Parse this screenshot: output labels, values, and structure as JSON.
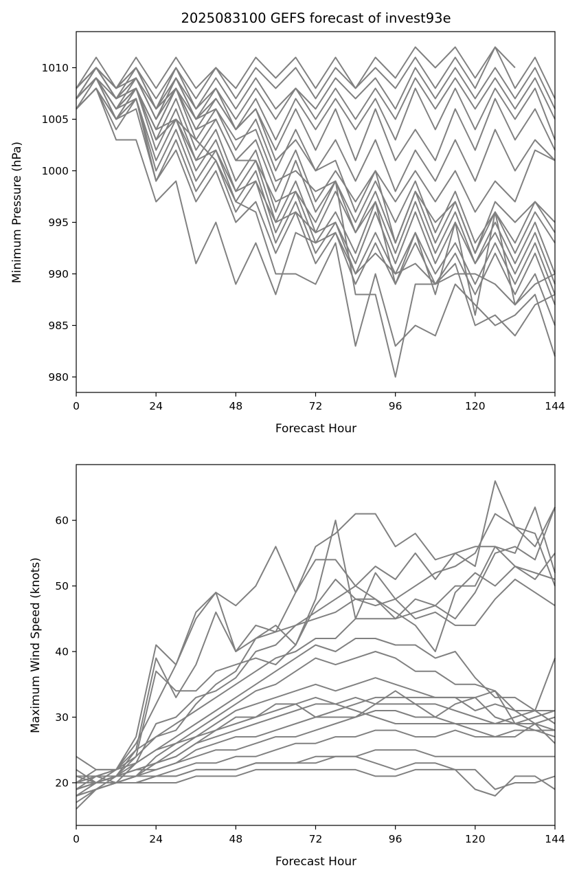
{
  "line_color": "#808080",
  "chart_data": [
    {
      "type": "line",
      "title": "2025083100 GEFS forecast of invest93e",
      "xlabel": "Forecast Hour",
      "ylabel": "Minimum Pressure (hPa)",
      "xlim": [
        0,
        144
      ],
      "ylim": [
        978.5,
        1013.5
      ],
      "xticks": [
        0,
        24,
        48,
        72,
        96,
        120,
        144
      ],
      "yticks": [
        980,
        985,
        990,
        995,
        1000,
        1005,
        1010
      ],
      "grid": false,
      "x": [
        0,
        6,
        12,
        18,
        24,
        30,
        36,
        42,
        48,
        54,
        60,
        66,
        72,
        78,
        84,
        90,
        96,
        102,
        108,
        114,
        120,
        126,
        132,
        138,
        144
      ],
      "series": [
        {
          "values": [
            1008,
            1011,
            1008,
            1011,
            1008,
            1011,
            1008,
            1010,
            1008,
            1011,
            1009,
            1011,
            1008,
            1011,
            1008,
            1011,
            1009,
            1012,
            1010,
            1012,
            1009,
            1012,
            1010,
            null,
            null
          ]
        },
        {
          "values": [
            1008,
            1010,
            1008,
            1010,
            1007,
            1010,
            1007,
            1010,
            1007,
            1010,
            1008,
            1010,
            1007,
            1010,
            1008,
            1010,
            1008,
            1011,
            1008,
            1011,
            1008,
            1012,
            1008,
            1011,
            1007
          ]
        },
        {
          "values": [
            1007,
            1010,
            1007,
            1010,
            1006,
            1010,
            1006,
            1009,
            1006,
            1009,
            1006,
            1008,
            1006,
            1009,
            1007,
            1009,
            1006,
            1010,
            1007,
            1010,
            1007,
            1010,
            1007,
            1010,
            1006
          ]
        },
        {
          "values": [
            1007,
            1009,
            1006,
            1009,
            1005,
            1009,
            1005,
            1008,
            1005,
            1008,
            1005,
            1008,
            1005,
            1008,
            1005,
            1008,
            1005,
            1009,
            1006,
            1009,
            1006,
            1009,
            1006,
            1009,
            1005
          ]
        },
        {
          "values": [
            1006,
            1009,
            1005,
            1008,
            1004,
            1008,
            1004,
            1007,
            1004,
            1007,
            1003,
            1007,
            1004,
            1007,
            1004,
            1007,
            1003,
            1008,
            1004,
            1008,
            1004,
            1008,
            1005,
            1008,
            1003
          ]
        },
        {
          "values": [
            1008,
            1010,
            1007,
            1009,
            1005,
            1009,
            1005,
            1007,
            1004,
            1006,
            1002,
            1006,
            1002,
            1006,
            1001,
            1006,
            1001,
            1004,
            1001,
            1006,
            1002,
            1007,
            1003,
            1006,
            1002
          ]
        },
        {
          "values": [
            1007,
            1009,
            1006,
            1008,
            1004,
            1008,
            1003,
            1006,
            1002,
            1005,
            1000,
            1004,
            1000,
            1003,
            999,
            1003,
            998,
            1002,
            999,
            1003,
            999,
            1004,
            1000,
            1003,
            1001
          ]
        },
        {
          "values": [
            1007,
            1009,
            1006,
            1008,
            1003,
            1007,
            1002,
            1005,
            1001,
            1003,
            998,
            1002,
            997,
            1000,
            997,
            1000,
            997,
            1000,
            997,
            1000,
            996,
            999,
            997,
            1002,
            1001
          ]
        },
        {
          "values": [
            1006,
            1008,
            1005,
            1008,
            1002,
            1006,
            1001,
            1004,
            999,
            1002,
            996,
            1001,
            996,
            999,
            995,
            999,
            995,
            999,
            994,
            998,
            993,
            996,
            993,
            997,
            995
          ]
        },
        {
          "values": [
            1007,
            1009,
            1006,
            1007,
            1001,
            1005,
            1000,
            1003,
            998,
            1001,
            995,
            999,
            994,
            998,
            994,
            998,
            993,
            998,
            993,
            997,
            992,
            996,
            992,
            996,
            993
          ]
        },
        {
          "values": [
            1006,
            1008,
            1005,
            1007,
            1000,
            1004,
            999,
            1002,
            997,
            1000,
            994,
            998,
            993,
            996,
            992,
            997,
            992,
            997,
            992,
            996,
            991,
            995,
            991,
            995,
            990
          ]
        },
        {
          "values": [
            1006,
            1008,
            1004,
            1007,
            999,
            1003,
            998,
            1001,
            996,
            999,
            993,
            997,
            992,
            995,
            991,
            996,
            991,
            996,
            991,
            995,
            991,
            994,
            990,
            994,
            989
          ]
        },
        {
          "values": [
            1007,
            1009,
            1005,
            1006,
            999,
            1002,
            997,
            1000,
            995,
            997,
            992,
            996,
            991,
            994,
            990,
            994,
            990,
            994,
            990,
            993,
            989,
            993,
            989,
            993,
            988
          ]
        },
        {
          "values": [
            1006,
            1008,
            1003,
            1003,
            997,
            999,
            991,
            995,
            989,
            993,
            988,
            994,
            993,
            994,
            989,
            993,
            989,
            993,
            989,
            992,
            988,
            992,
            988,
            992,
            987
          ]
        },
        {
          "values": [
            1008,
            1010,
            1007,
            1008,
            1003,
            1005,
            1001,
            1002,
            998,
            999,
            995,
            996,
            994,
            995,
            990,
            992,
            990,
            991,
            989,
            990,
            990,
            989,
            987,
            990,
            985
          ]
        },
        {
          "values": [
            1007,
            1009,
            1007,
            1008,
            1004,
            1005,
            1003,
            1001,
            997,
            996,
            990,
            990,
            989,
            993,
            983,
            990,
            983,
            985,
            984,
            989,
            987,
            985,
            986,
            988,
            982
          ]
        },
        {
          "values": [
            1008,
            1010,
            1008,
            1009,
            1006,
            1008,
            1005,
            1006,
            1003,
            1004,
            999,
            1000,
            998,
            999,
            988,
            988,
            980,
            989,
            989,
            991,
            985,
            986,
            984,
            987,
            988
          ]
        },
        {
          "values": [
            1007,
            1010,
            1007,
            1009,
            1005,
            1008,
            1004,
            1005,
            1001,
            1001,
            997,
            998,
            995,
            999,
            994,
            997,
            989,
            994,
            988,
            995,
            986,
            996,
            987,
            989,
            990
          ]
        },
        {
          "values": [
            1008,
            1010,
            1008,
            1010,
            1006,
            1009,
            1006,
            1008,
            1004,
            1006,
            1001,
            1003,
            1000,
            1001,
            996,
            1000,
            993,
            998,
            995,
            997,
            992,
            997,
            995,
            997,
            994
          ]
        }
      ]
    },
    {
      "type": "line",
      "title": "",
      "xlabel": "Forecast Hour",
      "ylabel": "Maximum Wind Speed (knots)",
      "xlim": [
        0,
        144
      ],
      "ylim": [
        13.5,
        68.5
      ],
      "xticks": [
        0,
        24,
        48,
        72,
        96,
        120,
        144
      ],
      "yticks": [
        20,
        30,
        40,
        50,
        60
      ],
      "grid": false,
      "x": [
        0,
        6,
        12,
        18,
        24,
        30,
        36,
        42,
        48,
        54,
        60,
        66,
        72,
        78,
        84,
        90,
        96,
        102,
        108,
        114,
        120,
        126,
        132,
        138,
        144
      ],
      "series": [
        {
          "values": [
            20,
            21,
            22,
            26,
            32,
            38,
            45,
            49,
            47,
            50,
            56,
            49,
            56,
            58,
            61,
            61,
            56,
            58,
            54,
            55,
            53,
            66,
            59,
            58,
            50
          ]
        },
        {
          "values": [
            19,
            20,
            22,
            27,
            41,
            38,
            46,
            49,
            40,
            44,
            43,
            49,
            54,
            54,
            50,
            53,
            51,
            55,
            51,
            55,
            56,
            56,
            55,
            62,
            52
          ]
        },
        {
          "values": [
            18,
            20,
            21,
            25,
            39,
            33,
            38,
            46,
            40,
            42,
            44,
            41,
            48,
            60,
            45,
            52,
            48,
            50,
            52,
            53,
            55,
            61,
            59,
            56,
            62
          ]
        },
        {
          "values": [
            22,
            20,
            21,
            24,
            37,
            34,
            34,
            37,
            38,
            39,
            38,
            41,
            47,
            51,
            48,
            48,
            45,
            48,
            47,
            45,
            49,
            55,
            56,
            54,
            62
          ]
        },
        {
          "values": [
            20,
            21,
            20,
            23,
            29,
            30,
            33,
            34,
            36,
            40,
            41,
            44,
            45,
            46,
            48,
            47,
            48,
            45,
            46,
            44,
            44,
            48,
            51,
            49,
            47
          ]
        },
        {
          "values": [
            21,
            21,
            22,
            24,
            27,
            28,
            32,
            35,
            37,
            42,
            43,
            44,
            46,
            48,
            50,
            48,
            46,
            44,
            40,
            49,
            52,
            50,
            53,
            51,
            55
          ]
        },
        {
          "values": [
            20,
            22,
            22,
            25,
            27,
            29,
            31,
            33,
            35,
            37,
            39,
            40,
            42,
            42,
            45,
            45,
            45,
            46,
            47,
            50,
            50,
            56,
            53,
            52,
            51
          ]
        },
        {
          "values": [
            19,
            20,
            21,
            23,
            25,
            27,
            29,
            31,
            33,
            35,
            37,
            39,
            41,
            40,
            42,
            42,
            41,
            41,
            39,
            40,
            36,
            33,
            33,
            31,
            29
          ]
        },
        {
          "values": [
            18,
            19,
            20,
            21,
            24,
            26,
            28,
            30,
            32,
            34,
            35,
            37,
            39,
            38,
            39,
            40,
            39,
            37,
            37,
            35,
            35,
            34,
            31,
            29,
            28
          ]
        },
        {
          "values": [
            17,
            19,
            20,
            21,
            23,
            25,
            27,
            29,
            31,
            32,
            33,
            34,
            35,
            34,
            35,
            36,
            35,
            34,
            33,
            33,
            33,
            30,
            29,
            28,
            27
          ]
        },
        {
          "values": [
            16,
            19,
            21,
            22,
            23,
            24,
            26,
            27,
            28,
            29,
            30,
            31,
            32,
            32,
            33,
            32,
            32,
            32,
            32,
            31,
            30,
            29,
            29,
            29,
            30
          ]
        },
        {
          "values": [
            19,
            21,
            21,
            22,
            22,
            23,
            25,
            26,
            27,
            27,
            28,
            29,
            30,
            31,
            32,
            33,
            33,
            33,
            33,
            33,
            31,
            32,
            31,
            31,
            31
          ]
        },
        {
          "values": [
            20,
            20,
            21,
            21,
            22,
            23,
            24,
            25,
            25,
            26,
            27,
            27,
            28,
            29,
            30,
            31,
            31,
            30,
            30,
            29,
            28,
            27,
            27,
            29,
            26
          ]
        },
        {
          "values": [
            19,
            20,
            20,
            21,
            21,
            22,
            23,
            23,
            24,
            24,
            25,
            26,
            26,
            27,
            27,
            28,
            28,
            27,
            27,
            28,
            27,
            27,
            28,
            28,
            28
          ]
        },
        {
          "values": [
            18,
            19,
            20,
            20,
            21,
            21,
            22,
            22,
            22,
            23,
            23,
            23,
            24,
            24,
            24,
            25,
            25,
            25,
            24,
            24,
            24,
            24,
            24,
            24,
            24
          ]
        },
        {
          "values": [
            19,
            20,
            20,
            20,
            21,
            21,
            22,
            22,
            22,
            23,
            23,
            23,
            23,
            24,
            24,
            23,
            22,
            23,
            23,
            22,
            22,
            19,
            20,
            20,
            21
          ]
        },
        {
          "values": [
            20,
            20,
            20,
            20,
            20,
            20,
            21,
            21,
            21,
            22,
            22,
            22,
            22,
            22,
            22,
            21,
            21,
            22,
            22,
            22,
            19,
            18,
            21,
            21,
            19
          ]
        },
        {
          "values": [
            21,
            20,
            21,
            22,
            23,
            24,
            26,
            28,
            30,
            30,
            32,
            32,
            30,
            30,
            30,
            32,
            34,
            32,
            30,
            32,
            33,
            34,
            29,
            30,
            31
          ]
        },
        {
          "values": [
            24,
            22,
            22,
            23,
            25,
            26,
            27,
            28,
            29,
            30,
            31,
            32,
            33,
            32,
            31,
            30,
            29,
            29,
            29,
            29,
            29,
            29,
            30,
            31,
            39
          ]
        }
      ]
    }
  ]
}
